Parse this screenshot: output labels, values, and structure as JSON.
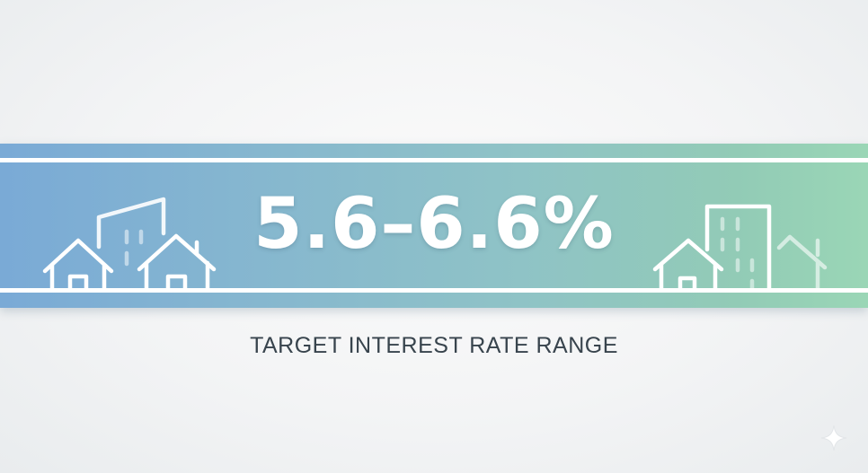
{
  "banner": {
    "value": "5.6–6.6%",
    "label": "TARGET INTEREST RATE RANGE",
    "colors": {
      "gradient_start": "#7aaad6",
      "gradient_end": "#9ad6b6",
      "text": "#ffffff",
      "label": "#38444d"
    }
  },
  "icons": {
    "left": "houses-building-icon",
    "right": "house-tower-house-icon",
    "corner": "sparkle-icon"
  }
}
